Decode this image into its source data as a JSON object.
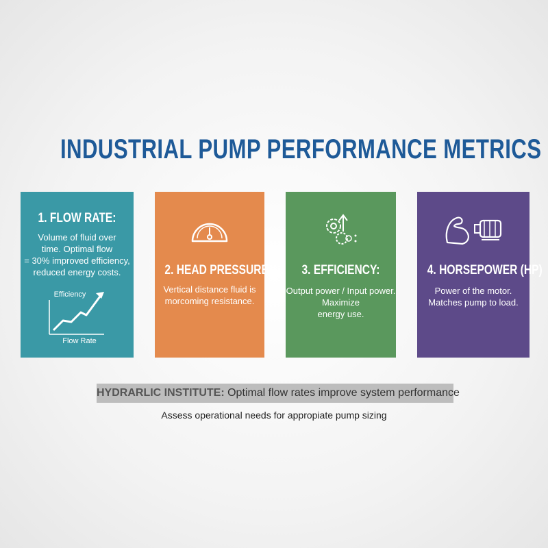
{
  "header": {
    "title": "INDUSTRIAL PUMP PERFORMANCE METRICS"
  },
  "cards": [
    {
      "title": "1. FLOW RATE:",
      "body": [
        "Volume of fluid over",
        "time. Optimal flow",
        "= 30% improved efficiency,",
        "reduced energy costs."
      ],
      "chart_labels": {
        "y": "Efficiency",
        "x": "Flow Rate"
      }
    },
    {
      "title": "2. HEAD PRESSURE",
      "body": [
        "Vertical distance fluid is",
        "morcoming resistance."
      ]
    },
    {
      "title": "3. EFFICIENCY:",
      "body": [
        "Output power / Input power.",
        "Maximize",
        "energy use."
      ]
    },
    {
      "title": "4. HORSEPOWER (HP)",
      "body": [
        "Power of the motor.",
        "Matches pump to load."
      ]
    }
  ],
  "footer": {
    "banner_label": "HYDRARLIC INSTITUTE:",
    "banner_text": "Optimal flow rates improve system performance",
    "note": "Assess operational needs for appropiate pump sizing"
  }
}
